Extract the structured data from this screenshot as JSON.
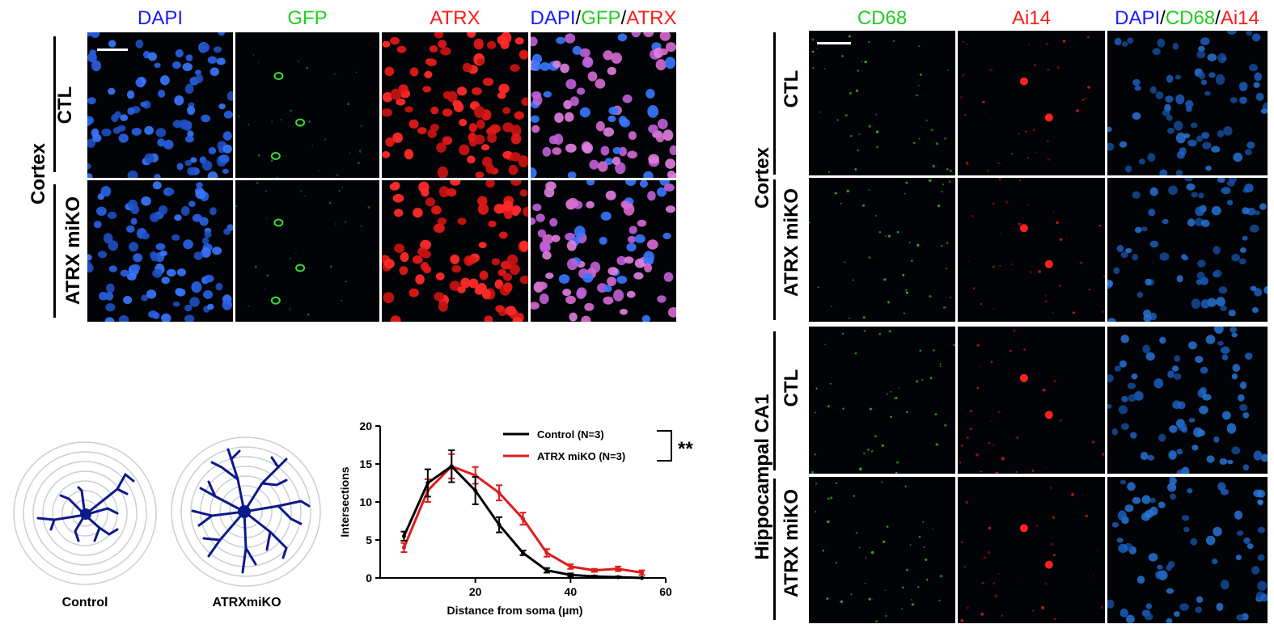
{
  "colors": {
    "blue": "#1a1aff",
    "green": "#22cc22",
    "red": "#ff1a1a",
    "black": "#000000",
    "navy": "#0d1a8a"
  },
  "left_figure": {
    "headers": [
      {
        "parts": [
          {
            "text": "DAPI",
            "color": "blue"
          }
        ]
      },
      {
        "parts": [
          {
            "text": "GFP",
            "color": "green"
          }
        ]
      },
      {
        "parts": [
          {
            "text": "ATRX",
            "color": "red"
          }
        ]
      },
      {
        "parts": [
          {
            "text": "DAPI",
            "color": "blue"
          },
          {
            "text": "/",
            "color": "black"
          },
          {
            "text": "GFP",
            "color": "green"
          },
          {
            "text": "/",
            "color": "black"
          },
          {
            "text": "ATRX",
            "color": "red"
          }
        ]
      }
    ],
    "region_label": "Cortex",
    "row_labels": [
      "CTL",
      "ATRX miKO"
    ]
  },
  "right_figure": {
    "headers": [
      {
        "parts": [
          {
            "text": "CD68",
            "color": "green"
          }
        ]
      },
      {
        "parts": [
          {
            "text": "Ai14",
            "color": "red"
          }
        ]
      },
      {
        "parts": [
          {
            "text": "DAPI",
            "color": "blue"
          },
          {
            "text": "/",
            "color": "black"
          },
          {
            "text": "CD68",
            "color": "green"
          },
          {
            "text": "/",
            "color": "black"
          },
          {
            "text": "Ai14",
            "color": "red"
          }
        ]
      }
    ],
    "region_labels": [
      "Cortex",
      "Hippocampal CA1"
    ],
    "row_labels": [
      "CTL",
      "ATRX miKO",
      "CTL",
      "ATRX miKO"
    ]
  },
  "sholl": {
    "labels": [
      "Control",
      "ATRXmiKO"
    ]
  },
  "chart_data": {
    "type": "line",
    "xlabel": "Distance from soma (μm)",
    "ylabel": "Intersections",
    "xlim": [
      0,
      60
    ],
    "ylim": [
      0,
      20
    ],
    "xticks": [
      20,
      40,
      60
    ],
    "yticks": [
      0,
      5,
      10,
      15,
      20
    ],
    "x": [
      5,
      10,
      15,
      20,
      25,
      30,
      35,
      40,
      45,
      50,
      55
    ],
    "series": [
      {
        "name": "Control (N=3)",
        "color": "#000000",
        "values": [
          5.5,
          12.5,
          14.7,
          11.5,
          7,
          3.3,
          1,
          0.4,
          0.2,
          0.1,
          0
        ],
        "errors": [
          0.6,
          1.8,
          2.1,
          1.8,
          1.0,
          0.3,
          0.3,
          0.2,
          0.1,
          0.1,
          0.05
        ]
      },
      {
        "name": "ATRX miKO (N=3)",
        "color": "#e01b1b",
        "values": [
          4,
          11.5,
          14.7,
          13.5,
          11.2,
          7.8,
          3.3,
          1.5,
          1,
          1.2,
          0.7
        ],
        "errors": [
          0.6,
          1.5,
          1.6,
          1.1,
          1.0,
          0.8,
          0.5,
          0.3,
          0.2,
          0.3,
          0.3
        ]
      }
    ],
    "significance": "**",
    "grid": false,
    "legend": "top-right"
  }
}
